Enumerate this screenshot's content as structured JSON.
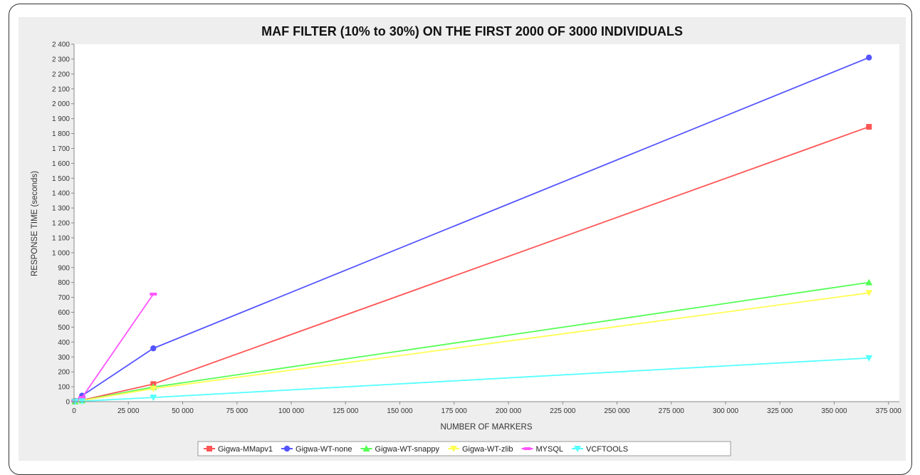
{
  "chart_data": {
    "type": "line",
    "title": "MAF FILTER (10% to 30%) ON THE FIRST 2000 OF 3000 INDIVIDUALS",
    "xlabel": "NUMBER OF MARKERS",
    "ylabel": "RESPONSE TIME (seconds)",
    "xlim": [
      0,
      380000
    ],
    "ylim": [
      0,
      2400
    ],
    "xticks": [
      0,
      25000,
      50000,
      75000,
      100000,
      125000,
      150000,
      175000,
      200000,
      225000,
      250000,
      275000,
      300000,
      325000,
      350000,
      375000
    ],
    "xtick_labels": [
      "0",
      "25 000",
      "50 000",
      "75 000",
      "100 000",
      "125 000",
      "150 000",
      "175 000",
      "200 000",
      "225 000",
      "250 000",
      "275 000",
      "300 000",
      "325 000",
      "350 000",
      "375 000"
    ],
    "yticks": [
      0,
      100,
      200,
      300,
      400,
      500,
      600,
      700,
      800,
      900,
      1000,
      1100,
      1200,
      1300,
      1400,
      1500,
      1600,
      1700,
      1800,
      1900,
      2000,
      2100,
      2200,
      2300,
      2400
    ],
    "ytick_labels": [
      "0",
      "100",
      "200",
      "300",
      "400",
      "500",
      "600",
      "700",
      "800",
      "900",
      "1 000",
      "1 100",
      "1 200",
      "1 300",
      "1 400",
      "1 500",
      "1 600",
      "1 700",
      "1 800",
      "1 900",
      "2 000",
      "2 100",
      "2 200",
      "2 300",
      "2 400"
    ],
    "grid": false,
    "legend_position": "bottom",
    "series": [
      {
        "name": "Gigwa-MMapv1",
        "color": "#ff5555",
        "marker": "square",
        "points": [
          [
            400,
            2
          ],
          [
            3700,
            10
          ],
          [
            36500,
            118
          ],
          [
            366000,
            1845
          ]
        ]
      },
      {
        "name": "Gigwa-WT-none",
        "color": "#5555ff",
        "marker": "circle",
        "points": [
          [
            400,
            5
          ],
          [
            3700,
            40
          ],
          [
            36500,
            358
          ],
          [
            366000,
            2310
          ]
        ]
      },
      {
        "name": "Gigwa-WT-snappy",
        "color": "#55ff55",
        "marker": "triangle-up",
        "points": [
          [
            400,
            1
          ],
          [
            3700,
            8
          ],
          [
            36500,
            98
          ],
          [
            366000,
            800
          ]
        ]
      },
      {
        "name": "Gigwa-WT-zlib",
        "color": "#ffff55",
        "marker": "triangle-down",
        "points": [
          [
            400,
            1
          ],
          [
            3700,
            7
          ],
          [
            36500,
            88
          ],
          [
            366000,
            730
          ]
        ]
      },
      {
        "name": "MYSQL",
        "color": "#ff55ff",
        "marker": "bar",
        "points": [
          [
            400,
            6
          ],
          [
            3700,
            28
          ],
          [
            36500,
            722
          ]
        ]
      },
      {
        "name": "VCFTOOLS",
        "color": "#55ffff",
        "marker": "triangle-down",
        "points": [
          [
            400,
            0
          ],
          [
            3700,
            3
          ],
          [
            36500,
            28
          ],
          [
            366000,
            293
          ]
        ]
      }
    ]
  }
}
